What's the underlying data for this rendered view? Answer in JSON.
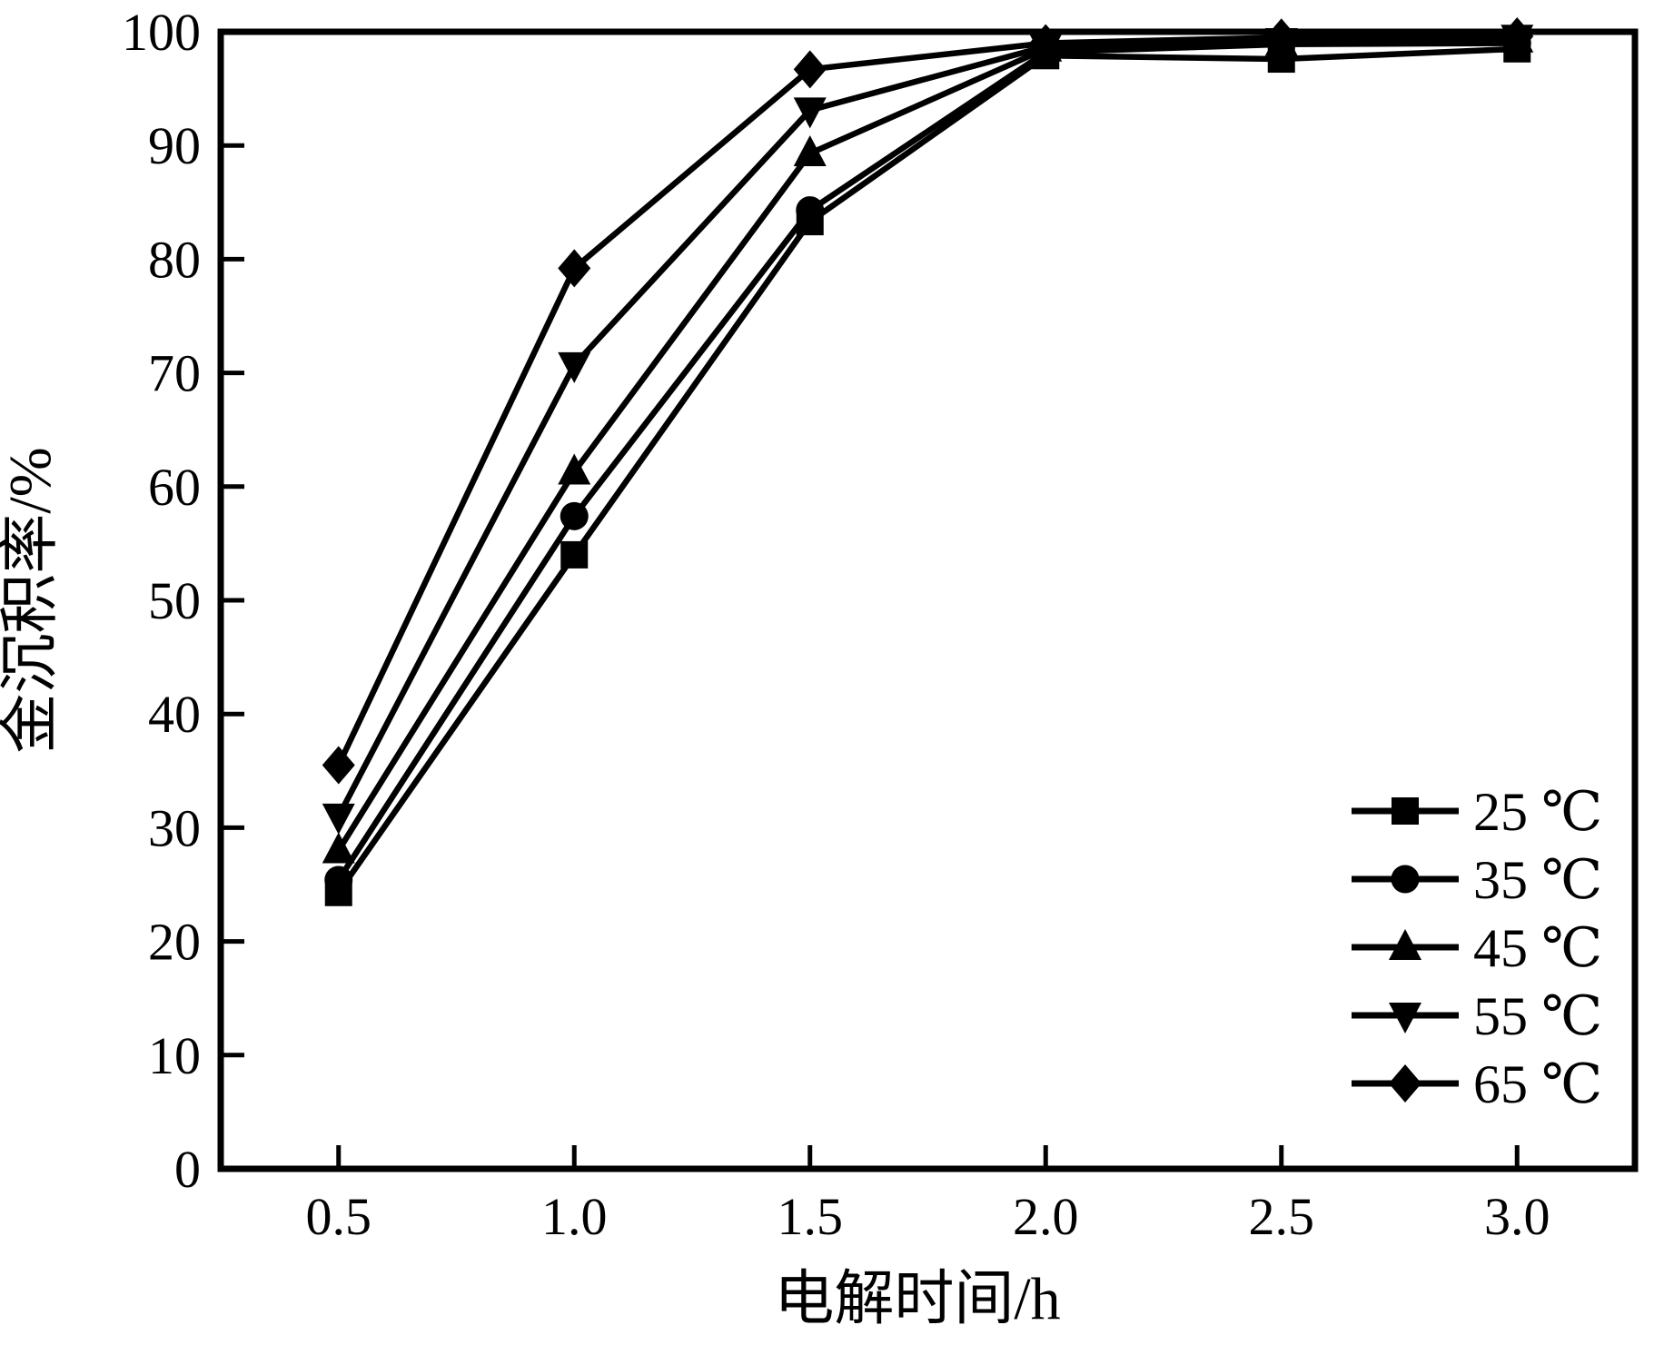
{
  "chart_data": {
    "type": "line",
    "title": "",
    "xlabel": "电解时间/h",
    "ylabel": "金沉积率/%",
    "grid": false,
    "legend_position": "lower right",
    "xlim": [
      0.25,
      3.25
    ],
    "ylim": [
      0,
      100
    ],
    "x": [
      0.5,
      1.0,
      1.5,
      2.0,
      2.5,
      3.0
    ],
    "xtick_labels": [
      "0.5",
      "1.0",
      "1.5",
      "2.0",
      "2.5",
      "3.0"
    ],
    "yticks": [
      0,
      10,
      20,
      30,
      40,
      50,
      60,
      70,
      80,
      90,
      100
    ],
    "series": [
      {
        "name": "25 ℃",
        "marker": "square",
        "values": [
          24.3,
          54.0,
          83.3,
          97.9,
          97.6,
          98.5
        ]
      },
      {
        "name": "35 ℃",
        "marker": "circle",
        "values": [
          25.4,
          57.4,
          84.3,
          98.2,
          98.9,
          99.0
        ]
      },
      {
        "name": "45 ℃",
        "marker": "triangle-up",
        "values": [
          28.0,
          61.3,
          89.3,
          98.5,
          99.0,
          99.3
        ]
      },
      {
        "name": "55 ℃",
        "marker": "triangle-down",
        "values": [
          31.0,
          70.7,
          93.1,
          98.7,
          99.2,
          99.5
        ]
      },
      {
        "name": "65 ℃",
        "marker": "diamond",
        "values": [
          35.5,
          79.2,
          96.7,
          99.0,
          99.5,
          99.6
        ]
      }
    ],
    "colors": {
      "line": "#000000",
      "marker": "#000000",
      "background": "#ffffff"
    }
  }
}
